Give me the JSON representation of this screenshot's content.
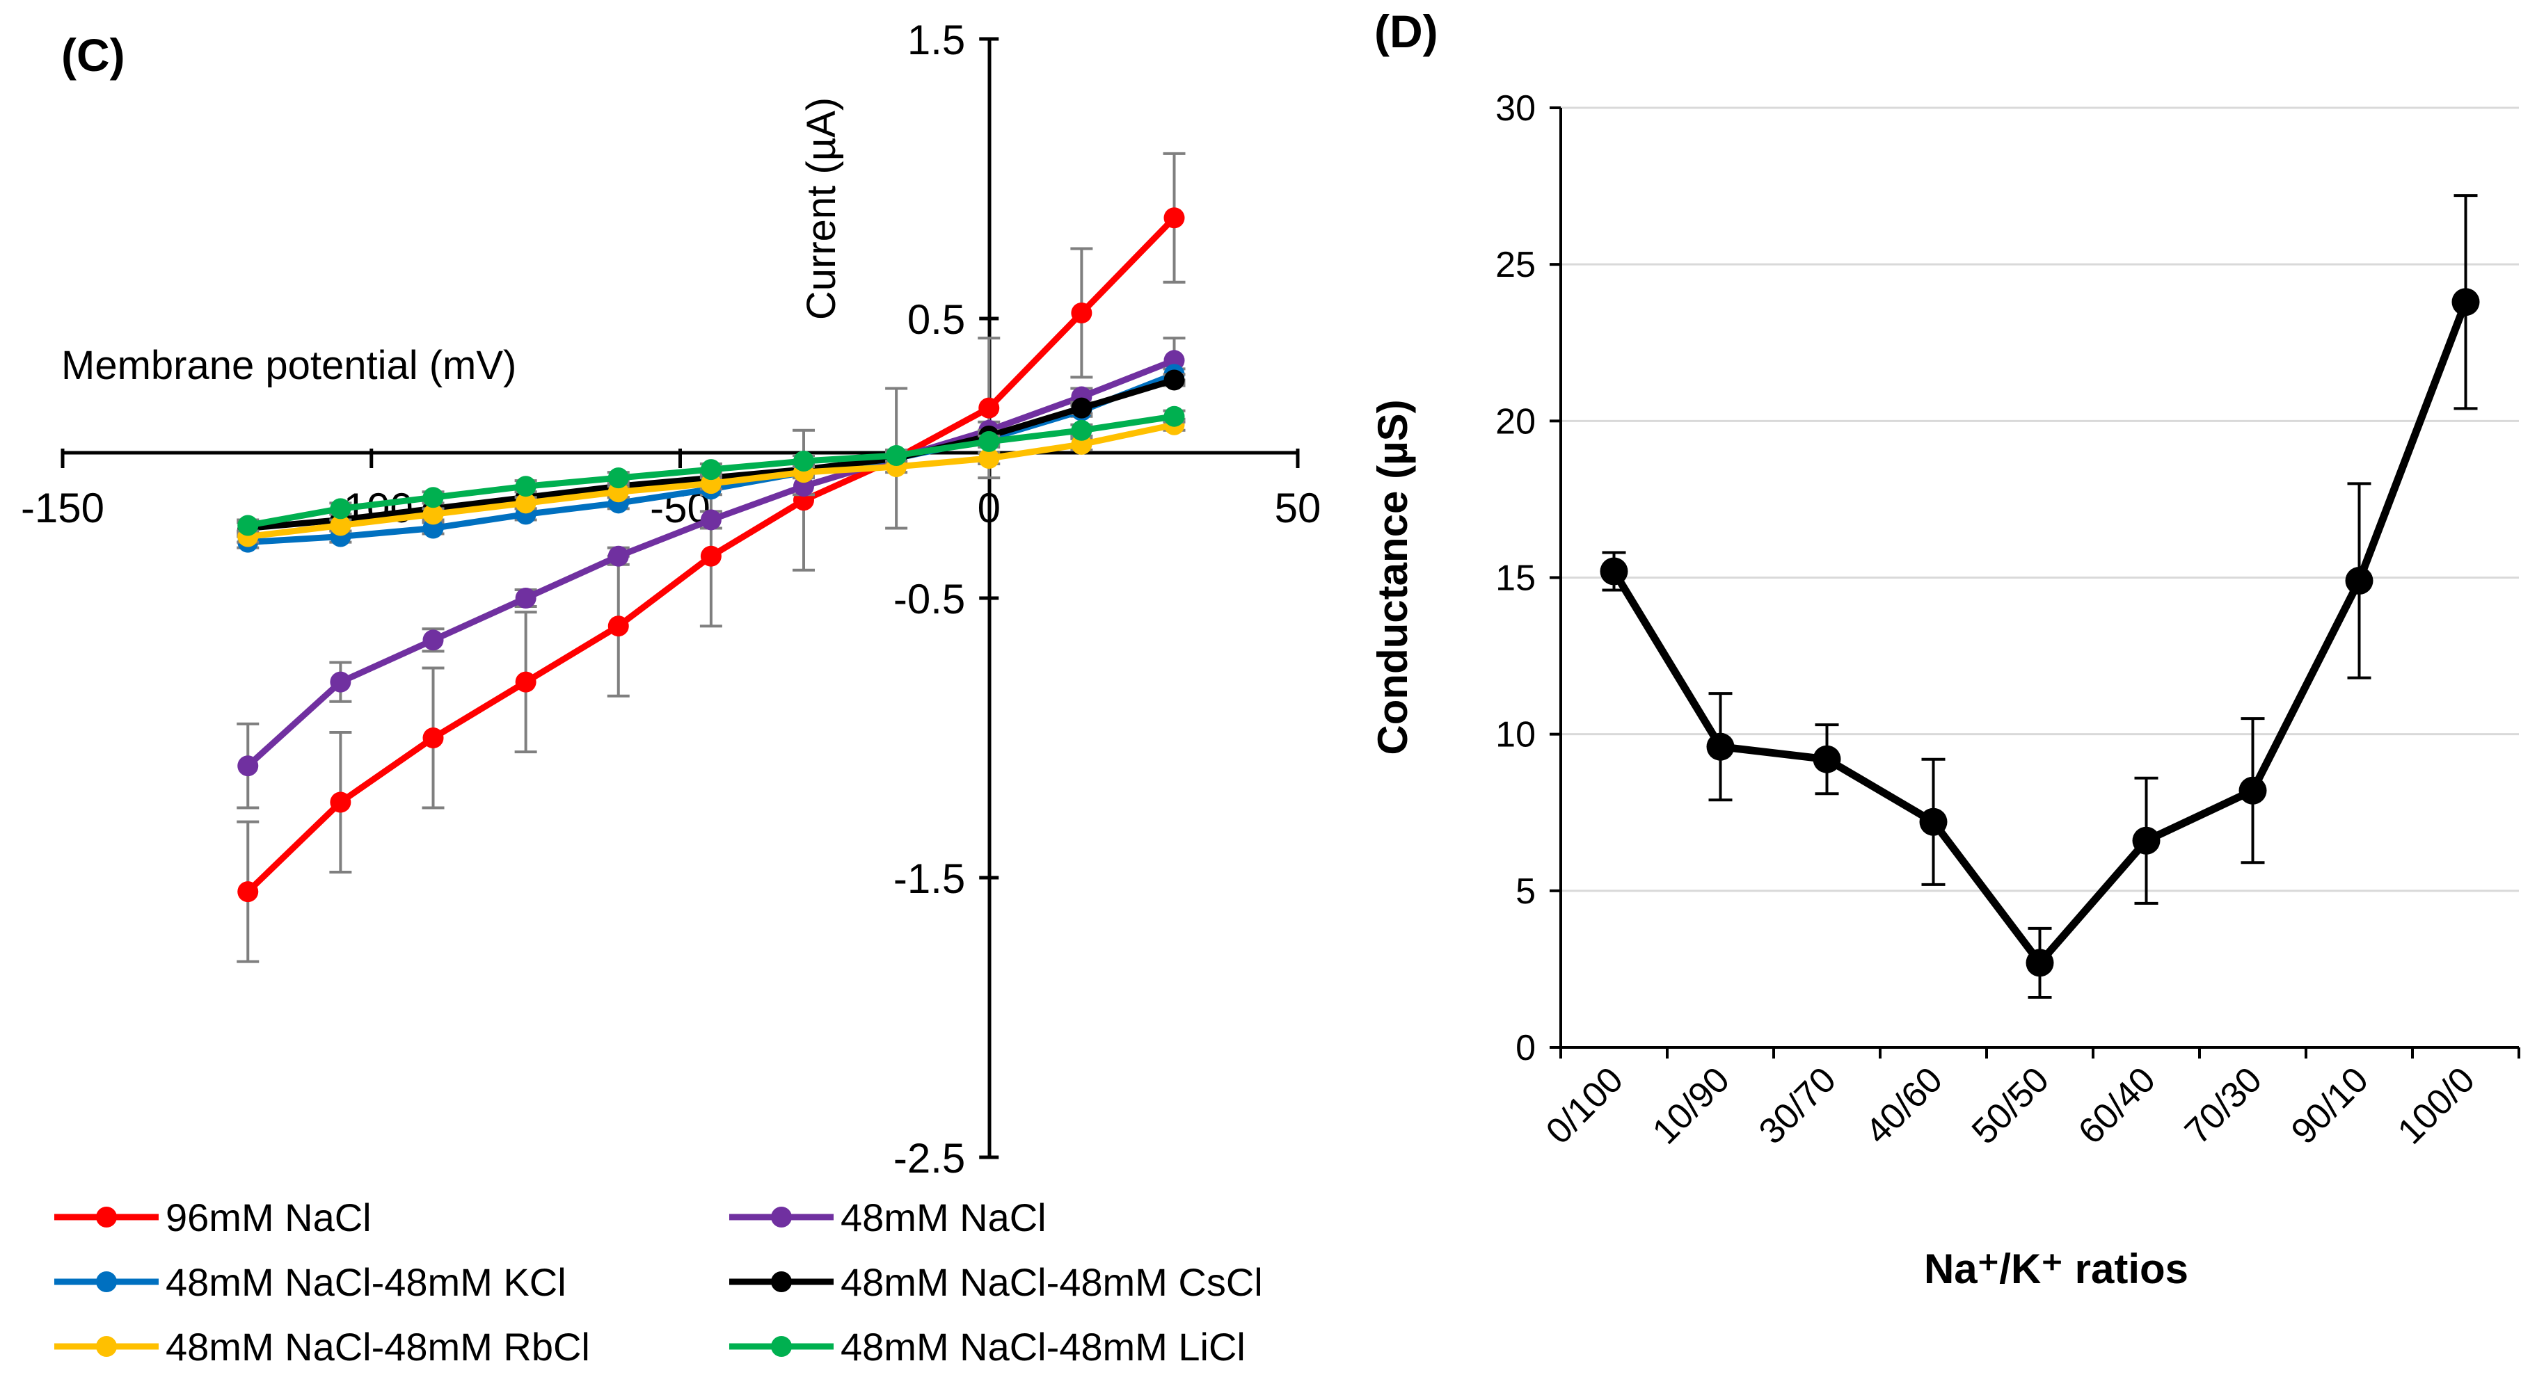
{
  "chart_data": [
    {
      "panel": "(C)",
      "type": "line",
      "xlabel": "Membrane potential (mV)",
      "ylabel": "Current (µA)",
      "xlim": [
        -150,
        50
      ],
      "ylim": [
        -2.5,
        1.5
      ],
      "x_ticks": [
        "-150",
        "-100",
        "-50",
        "0",
        "50"
      ],
      "y_ticks": [
        "1.5",
        "0.5",
        "-0.5",
        "-1.5",
        "-2.5"
      ],
      "legend_position": "bottom",
      "x": [
        -120,
        -105,
        -90,
        -75,
        -60,
        -45,
        -30,
        -15,
        0,
        15,
        30
      ],
      "series": [
        {
          "name": "96mM NaCl",
          "color": "#ff0000",
          "values": [
            -1.55,
            -1.23,
            -1.0,
            -0.8,
            -0.6,
            -0.35,
            -0.15,
            0.0,
            0.18,
            0.52,
            0.86
          ],
          "errors": [
            0.25,
            0.25,
            0.25,
            0.25,
            0.25,
            0.25,
            0.25,
            0.25,
            0.25,
            0.23,
            0.23
          ]
        },
        {
          "name": "48mM NaCl",
          "color": "#7030a0",
          "values": [
            -1.1,
            -0.8,
            -0.65,
            -0.5,
            -0.35,
            -0.22,
            -0.1,
            0.0,
            0.1,
            0.22,
            0.35
          ],
          "errors": [
            0.15,
            0.07,
            0.04,
            0.03,
            0.03,
            0.03,
            0.03,
            0.03,
            0.03,
            0.03,
            0.08
          ]
        },
        {
          "name": "48mM NaCl-48mM KCl",
          "color": "#0070c0",
          "values": [
            -0.3,
            -0.28,
            -0.25,
            -0.2,
            -0.16,
            -0.11,
            -0.05,
            0.0,
            0.07,
            0.17,
            0.3
          ],
          "errors": [
            0.02,
            0.02,
            0.02,
            0.02,
            0.02,
            0.02,
            0.02,
            0.02,
            0.02,
            0.02,
            0.02
          ]
        },
        {
          "name": "48mM NaCl-48mM CsCl",
          "color": "#000000",
          "values": [
            -0.25,
            -0.22,
            -0.18,
            -0.14,
            -0.1,
            -0.07,
            -0.04,
            0.0,
            0.08,
            0.18,
            0.28
          ],
          "errors": [
            0.02,
            0.02,
            0.02,
            0.02,
            0.02,
            0.02,
            0.02,
            0.02,
            0.02,
            0.02,
            0.02
          ]
        },
        {
          "name": "48mM NaCl-48mM RbCl",
          "color": "#ffc000",
          "values": [
            -0.28,
            -0.24,
            -0.2,
            -0.16,
            -0.12,
            -0.09,
            -0.05,
            -0.03,
            0.0,
            0.05,
            0.12
          ],
          "errors": [
            0.02,
            0.02,
            0.02,
            0.02,
            0.02,
            0.02,
            0.02,
            0.02,
            0.02,
            0.02,
            0.02
          ]
        },
        {
          "name": "48mM NaCl-48mM LiCl",
          "color": "#00b050",
          "values": [
            -0.24,
            -0.18,
            -0.14,
            -0.1,
            -0.07,
            -0.04,
            -0.01,
            0.01,
            0.06,
            0.1,
            0.15
          ],
          "errors": [
            0.02,
            0.02,
            0.02,
            0.02,
            0.02,
            0.02,
            0.02,
            0.02,
            0.02,
            0.02,
            0.02
          ]
        }
      ]
    },
    {
      "panel": "(D)",
      "type": "line",
      "xlabel": "Na⁺/K⁺ ratios",
      "ylabel": "Conductance (µS)",
      "ylim": [
        0,
        30
      ],
      "y_ticks": [
        "30",
        "25",
        "20",
        "15",
        "10",
        "5",
        "0"
      ],
      "grid": true,
      "categories": [
        "0/100",
        "10/90",
        "30/70",
        "40/60",
        "50/50",
        "60/40",
        "70/30",
        "90/10",
        "100/0"
      ],
      "series": [
        {
          "name": "Conductance",
          "color": "#000000",
          "values": [
            15.2,
            9.6,
            9.2,
            7.2,
            2.7,
            6.6,
            8.2,
            14.9,
            23.8
          ],
          "errors": [
            0.6,
            1.7,
            1.1,
            2.0,
            1.1,
            2.0,
            2.3,
            3.1,
            3.4
          ]
        }
      ]
    }
  ]
}
